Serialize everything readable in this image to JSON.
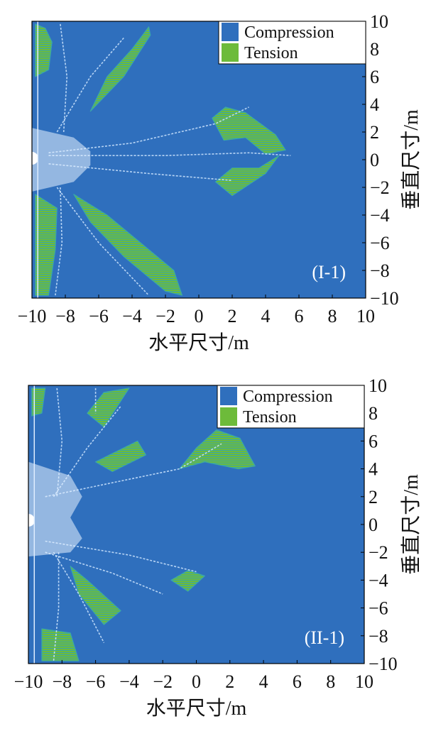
{
  "chart_data": [
    {
      "type": "heatmap",
      "panel_label": "(I-1)",
      "xlabel": "水平尺寸/m",
      "ylabel": "垂直尺寸/m",
      "xlim": [
        -10,
        10
      ],
      "ylim": [
        -10,
        10
      ],
      "xticks": [
        "−10",
        "−8",
        "−6",
        "−4",
        "−2",
        "0",
        "2",
        "4",
        "6",
        "8",
        "10"
      ],
      "yticks": [
        "10",
        "8",
        "6",
        "4",
        "2",
        "0",
        "−2",
        "−4",
        "−6",
        "−8",
        "−10"
      ],
      "legend": {
        "position": "top-right",
        "items": [
          {
            "label": "Compression",
            "color": "#2f6fbd"
          },
          {
            "label": "Tension",
            "color": "#6dbb3a"
          }
        ]
      },
      "grid": false,
      "regions": [
        {
          "state": "tension",
          "points": [
            [
              -9.8,
              9.8
            ],
            [
              -9.2,
              9.5
            ],
            [
              -8.8,
              8.5
            ],
            [
              -9.0,
              6.5
            ],
            [
              -9.8,
              6.0
            ]
          ]
        },
        {
          "state": "tension",
          "points": [
            [
              -4.0,
              8.0
            ],
            [
              -3.0,
              9.6
            ],
            [
              -2.9,
              9.0
            ],
            [
              -4.5,
              6.0
            ],
            [
              -6.5,
              3.5
            ],
            [
              -5.5,
              6.0
            ]
          ]
        },
        {
          "state": "tension",
          "points": [
            [
              0.8,
              3.0
            ],
            [
              1.6,
              3.8
            ],
            [
              2.8,
              3.4
            ],
            [
              4.6,
              1.8
            ],
            [
              5.2,
              0.7
            ],
            [
              4.0,
              0.4
            ],
            [
              2.8,
              1.6
            ],
            [
              1.5,
              1.4
            ]
          ]
        },
        {
          "state": "tension",
          "points": [
            [
              1.0,
              -1.6
            ],
            [
              2.0,
              -0.6
            ],
            [
              3.6,
              -0.6
            ],
            [
              4.8,
              0.3
            ],
            [
              4.0,
              -1.0
            ],
            [
              2.0,
              -2.6
            ]
          ]
        },
        {
          "state": "tension",
          "points": [
            [
              -7.5,
              -2.5
            ],
            [
              -5.5,
              -4.0
            ],
            [
              -3.5,
              -6.0
            ],
            [
              -1.5,
              -8.0
            ],
            [
              -1.0,
              -9.8
            ],
            [
              -2.0,
              -9.5
            ],
            [
              -4.5,
              -7.0
            ],
            [
              -6.5,
              -4.5
            ]
          ]
        },
        {
          "state": "tension",
          "points": [
            [
              -9.8,
              -2.5
            ],
            [
              -8.5,
              -3.5
            ],
            [
              -8.6,
              -6.5
            ],
            [
              -9.0,
              -9.8
            ],
            [
              -9.8,
              -9.8
            ]
          ]
        }
      ],
      "fractures": [
        [
          [
            -9.0,
            0.5
          ],
          [
            -4.0,
            1.2
          ],
          [
            1.0,
            2.6
          ],
          [
            3.0,
            3.8
          ]
        ],
        [
          [
            -9.0,
            0.3
          ],
          [
            -2.0,
            0.3
          ],
          [
            3.0,
            0.5
          ],
          [
            5.5,
            0.3
          ]
        ],
        [
          [
            -9.0,
            -0.3
          ],
          [
            -3.0,
            -1.0
          ],
          [
            2.0,
            -1.5
          ]
        ],
        [
          [
            -8.3,
            9.8
          ],
          [
            -7.9,
            6.0
          ],
          [
            -8.1,
            2.0
          ]
        ],
        [
          [
            -8.3,
            -2.0
          ],
          [
            -8.2,
            -6.0
          ],
          [
            -8.6,
            -9.8
          ]
        ],
        [
          [
            -8.5,
            2.0
          ],
          [
            -6.5,
            6.0
          ],
          [
            -4.5,
            8.8
          ]
        ],
        [
          [
            -8.5,
            -2.0
          ],
          [
            -6.0,
            -6.0
          ],
          [
            -3.0,
            -9.8
          ]
        ]
      ],
      "white_zone": [
        [
          -10,
          2.3
        ],
        [
          -7.5,
          1.6
        ],
        [
          -6.5,
          0.6
        ],
        [
          -6.5,
          -0.4
        ],
        [
          -7.5,
          -1.6
        ],
        [
          -10,
          -2.3
        ]
      ]
    },
    {
      "type": "heatmap",
      "panel_label": "(II-1)",
      "xlabel": "水平尺寸/m",
      "ylabel": "垂直尺寸/m",
      "xlim": [
        -10,
        10
      ],
      "ylim": [
        -10,
        10
      ],
      "xticks": [
        "−10",
        "−8",
        "−6",
        "−4",
        "−2",
        "0",
        "2",
        "4",
        "6",
        "8",
        "10"
      ],
      "yticks": [
        "10",
        "8",
        "6",
        "4",
        "2",
        "0",
        "−2",
        "−4",
        "−6",
        "−8",
        "−10"
      ],
      "legend": {
        "position": "top-right",
        "items": [
          {
            "label": "Compression",
            "color": "#2f6fbd"
          },
          {
            "label": "Tension",
            "color": "#6dbb3a"
          }
        ]
      },
      "grid": false,
      "regions": [
        {
          "state": "tension",
          "points": [
            [
              -9.8,
              9.8
            ],
            [
              -9.0,
              9.8
            ],
            [
              -9.2,
              8.0
            ],
            [
              -9.8,
              7.8
            ]
          ]
        },
        {
          "state": "tension",
          "points": [
            [
              -5.5,
              9.5
            ],
            [
              -4.0,
              9.8
            ],
            [
              -5.5,
              7.0
            ],
            [
              -6.5,
              8.0
            ]
          ]
        },
        {
          "state": "tension",
          "points": [
            [
              -6.0,
              4.5
            ],
            [
              -3.5,
              6.0
            ],
            [
              -3.0,
              5.0
            ],
            [
              -5.0,
              3.8
            ]
          ]
        },
        {
          "state": "tension",
          "points": [
            [
              -1.0,
              4.0
            ],
            [
              0.0,
              5.5
            ],
            [
              1.2,
              6.8
            ],
            [
              2.6,
              6.2
            ],
            [
              3.5,
              4.2
            ],
            [
              2.5,
              4.0
            ],
            [
              0.5,
              4.5
            ]
          ]
        },
        {
          "state": "tension",
          "points": [
            [
              -1.5,
              -4.0
            ],
            [
              -0.5,
              -3.3
            ],
            [
              0.5,
              -3.7
            ],
            [
              -0.5,
              -4.8
            ]
          ]
        },
        {
          "state": "tension",
          "points": [
            [
              -7.5,
              -3.0
            ],
            [
              -6.5,
              -4.0
            ],
            [
              -4.5,
              -6.2
            ],
            [
              -5.5,
              -7.2
            ],
            [
              -7.0,
              -5.0
            ]
          ]
        },
        {
          "state": "tension",
          "points": [
            [
              -9.2,
              -7.5
            ],
            [
              -7.5,
              -7.8
            ],
            [
              -7.0,
              -9.8
            ],
            [
              -9.2,
              -9.8
            ]
          ]
        }
      ],
      "fractures": [
        [
          [
            -9.0,
            2.0
          ],
          [
            -5.0,
            3.0
          ],
          [
            -1.0,
            4.0
          ],
          [
            1.5,
            5.8
          ]
        ],
        [
          [
            -9.0,
            -1.2
          ],
          [
            -4.0,
            -2.2
          ],
          [
            0.0,
            -3.4
          ]
        ],
        [
          [
            -9.0,
            -2.0
          ],
          [
            -5.0,
            -3.5
          ],
          [
            -2.0,
            -5.0
          ]
        ],
        [
          [
            -8.3,
            9.8
          ],
          [
            -8.0,
            6.0
          ],
          [
            -8.3,
            2.0
          ]
        ],
        [
          [
            -8.2,
            -2.0
          ],
          [
            -8.2,
            -6.0
          ],
          [
            -8.5,
            -9.8
          ]
        ],
        [
          [
            -6.0,
            9.8
          ],
          [
            -6.0,
            8.0
          ]
        ],
        [
          [
            -8.5,
            2.0
          ],
          [
            -6.5,
            5.5
          ],
          [
            -4.5,
            8.5
          ]
        ],
        [
          [
            -8.5,
            -2.0
          ],
          [
            -7.0,
            -5.0
          ],
          [
            -5.5,
            -8.5
          ]
        ]
      ],
      "white_zone": [
        [
          -10,
          4.5
        ],
        [
          -7.5,
          3.5
        ],
        [
          -6.8,
          2.0
        ],
        [
          -7.5,
          0.5
        ],
        [
          -6.8,
          -1.0
        ],
        [
          -7.5,
          -2.0
        ],
        [
          -10,
          -2.3
        ]
      ]
    }
  ]
}
